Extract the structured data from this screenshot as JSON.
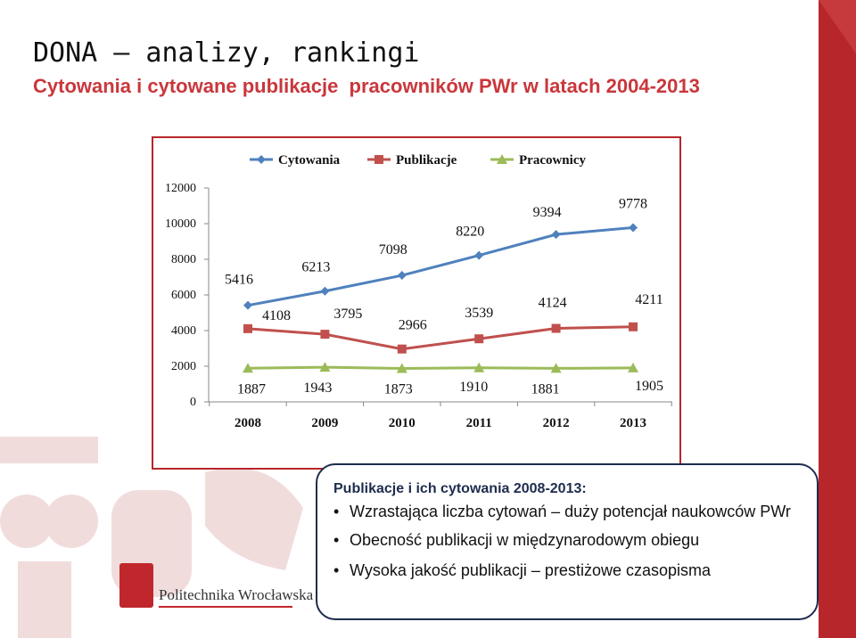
{
  "header": {
    "title": "DONA – analizy, rankingi",
    "subtitle": "Cytowania i cytowane publikacje  pracowników PWr w latach 2004-2013"
  },
  "colors": {
    "accent": "#b7262a",
    "subtitle": "#c9373c",
    "cytowania": "#4f81bd",
    "publikacje": "#c0504d",
    "pracownicy": "#9bbb59",
    "box_border": "#1e2c4e"
  },
  "chart_data": {
    "type": "line",
    "categories": [
      "2008",
      "2009",
      "2010",
      "2011",
      "2012",
      "2013"
    ],
    "ylim": [
      0,
      12000
    ],
    "yticks": [
      "12000",
      "10000",
      "8000",
      "6000",
      "4000",
      "2000",
      "0"
    ],
    "legend_position": "top",
    "grid": false,
    "series": [
      {
        "name": "Cytowania",
        "values": [
          5416,
          6213,
          7098,
          8220,
          9394,
          9778
        ],
        "labels": [
          "5416",
          "6213",
          "7098",
          "8220",
          "9394",
          "9778"
        ],
        "color": "#4f81bd",
        "marker": "diamond"
      },
      {
        "name": "Publikacje",
        "values": [
          4108,
          3795,
          2966,
          3539,
          4124,
          4211
        ],
        "labels": [
          "4108",
          "3795",
          "2966",
          "3539",
          "4124",
          "4211"
        ],
        "color": "#c0504d",
        "marker": "square"
      },
      {
        "name": "Pracownicy",
        "values": [
          1887,
          1943,
          1873,
          1910,
          1881,
          1905
        ],
        "labels": [
          "1887",
          "1943",
          "1873",
          "1910",
          "1881",
          "1905"
        ],
        "color": "#9bbb59",
        "marker": "triangle"
      }
    ]
  },
  "info_box": {
    "heading": "Publikacje i ich cytowania 2008-2013:",
    "items": [
      "Wzrastająca liczba cytowań – duży potencjał naukowców PWr",
      "Obecność publikacji w międzynarodowym obiegu",
      "Wysoka jakość publikacji – prestiżowe czasopisma"
    ],
    "bullet": "•"
  },
  "logo": {
    "text": "Politechnika Wrocławska"
  }
}
